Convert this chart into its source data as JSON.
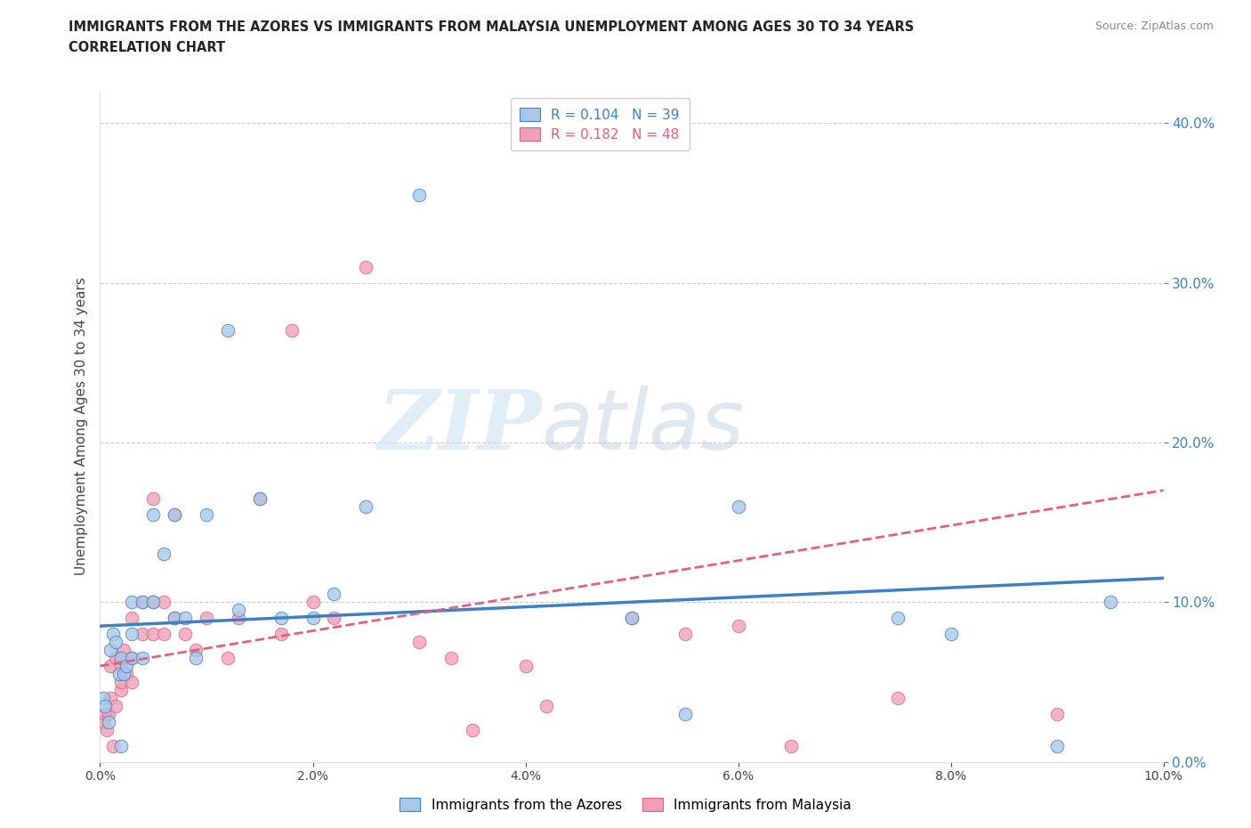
{
  "title_line1": "IMMIGRANTS FROM THE AZORES VS IMMIGRANTS FROM MALAYSIA UNEMPLOYMENT AMONG AGES 30 TO 34 YEARS",
  "title_line2": "CORRELATION CHART",
  "source": "Source: ZipAtlas.com",
  "ylabel": "Unemployment Among Ages 30 to 34 years",
  "watermark_left": "ZIP",
  "watermark_right": "atlas",
  "azores_R": 0.104,
  "azores_N": 39,
  "malaysia_R": 0.182,
  "malaysia_N": 48,
  "azores_color": "#a8c8e8",
  "malaysia_color": "#f0a0b8",
  "azores_line_color": "#4080c0",
  "malaysia_line_color": "#e06080",
  "xmin": 0.0,
  "xmax": 0.1,
  "ymin": 0.0,
  "ymax": 0.42,
  "yticks": [
    0.0,
    0.1,
    0.2,
    0.3,
    0.4
  ],
  "xticks": [
    0.0,
    0.02,
    0.04,
    0.06,
    0.08,
    0.1
  ],
  "azores_x": [
    0.0003,
    0.0005,
    0.0008,
    0.001,
    0.0012,
    0.0015,
    0.0018,
    0.002,
    0.002,
    0.0022,
    0.0025,
    0.003,
    0.003,
    0.003,
    0.004,
    0.004,
    0.005,
    0.005,
    0.006,
    0.007,
    0.007,
    0.008,
    0.009,
    0.01,
    0.012,
    0.013,
    0.015,
    0.017,
    0.02,
    0.022,
    0.025,
    0.03,
    0.05,
    0.055,
    0.06,
    0.075,
    0.08,
    0.09,
    0.095
  ],
  "azores_y": [
    0.04,
    0.035,
    0.025,
    0.07,
    0.08,
    0.075,
    0.055,
    0.065,
    0.01,
    0.055,
    0.06,
    0.065,
    0.08,
    0.1,
    0.065,
    0.1,
    0.155,
    0.1,
    0.13,
    0.09,
    0.155,
    0.09,
    0.065,
    0.155,
    0.27,
    0.095,
    0.165,
    0.09,
    0.09,
    0.105,
    0.16,
    0.355,
    0.09,
    0.03,
    0.16,
    0.09,
    0.08,
    0.01,
    0.1
  ],
  "malaysia_x": [
    0.0003,
    0.0005,
    0.0006,
    0.0008,
    0.001,
    0.001,
    0.0012,
    0.0015,
    0.0015,
    0.002,
    0.002,
    0.002,
    0.0022,
    0.0025,
    0.003,
    0.003,
    0.003,
    0.004,
    0.004,
    0.005,
    0.005,
    0.005,
    0.006,
    0.006,
    0.007,
    0.007,
    0.008,
    0.009,
    0.01,
    0.012,
    0.013,
    0.015,
    0.017,
    0.018,
    0.02,
    0.022,
    0.025,
    0.03,
    0.033,
    0.035,
    0.04,
    0.042,
    0.05,
    0.055,
    0.06,
    0.065,
    0.075,
    0.09
  ],
  "malaysia_y": [
    0.025,
    0.03,
    0.02,
    0.03,
    0.04,
    0.06,
    0.01,
    0.035,
    0.065,
    0.045,
    0.05,
    0.06,
    0.07,
    0.055,
    0.05,
    0.065,
    0.09,
    0.08,
    0.1,
    0.08,
    0.1,
    0.165,
    0.08,
    0.1,
    0.09,
    0.155,
    0.08,
    0.07,
    0.09,
    0.065,
    0.09,
    0.165,
    0.08,
    0.27,
    0.1,
    0.09,
    0.31,
    0.075,
    0.065,
    0.02,
    0.06,
    0.035,
    0.09,
    0.08,
    0.085,
    0.01,
    0.04,
    0.03
  ],
  "az_line_x0": 0.0,
  "az_line_x1": 0.1,
  "az_line_y0": 0.085,
  "az_line_y1": 0.115,
  "ma_line_x0": 0.0,
  "ma_line_x1": 0.1,
  "ma_line_y0": 0.06,
  "ma_line_y1": 0.17
}
